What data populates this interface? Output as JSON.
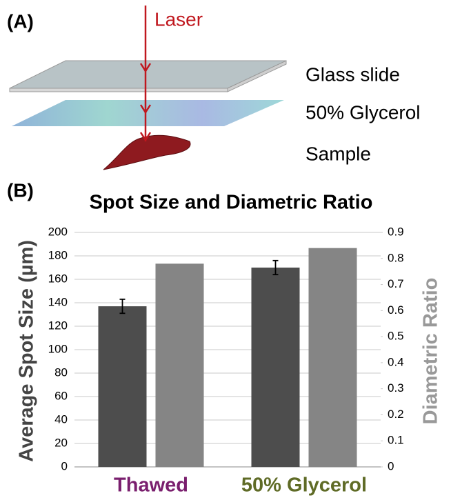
{
  "diagram": {
    "panel_label": "(A)",
    "laser": "Laser",
    "layers": [
      "Glass slide",
      "50% Glycerol",
      "Sample"
    ]
  },
  "chart_data": {
    "type": "bar",
    "panel_label": "(B)",
    "title": "Spot Size and Diametric Ratio",
    "categories": [
      "Thawed",
      "50% Glycerol"
    ],
    "category_colors": [
      "#7a1f6e",
      "#5f6b26"
    ],
    "ylabel": "Average Spot Size (µm)",
    "y2label": "Diametric Ratio",
    "series": [
      {
        "color": "#4d4d4d",
        "values": [
          137,
          170
        ],
        "errors": [
          6,
          6
        ],
        "axis": "y"
      },
      {
        "color": "#858585",
        "values": [
          0.78,
          0.84
        ],
        "axis": "y2"
      }
    ],
    "ylim": [
      0,
      200
    ],
    "yticks": [
      0,
      20,
      40,
      60,
      80,
      100,
      120,
      140,
      160,
      180,
      200
    ],
    "y2lim": [
      0,
      0.9
    ],
    "y2ticks": [
      0,
      0.1,
      0.2,
      0.3,
      0.4,
      0.5,
      0.6,
      0.7,
      0.8,
      0.9
    ],
    "grid": true
  }
}
